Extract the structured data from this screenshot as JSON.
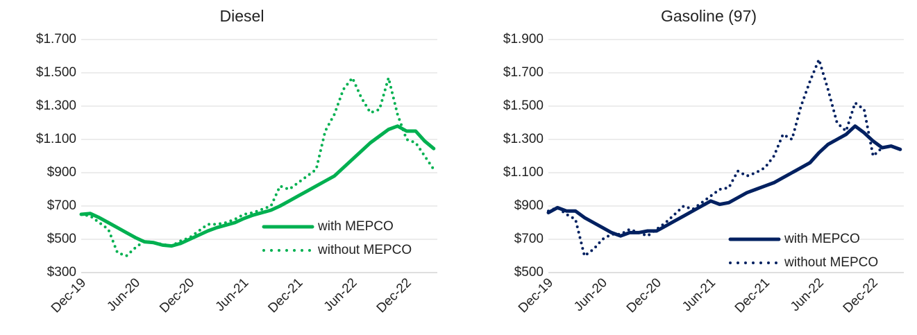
{
  "chart_data": [
    {
      "type": "line",
      "title": "Diesel",
      "categories": [
        "Dec-19",
        null,
        null,
        null,
        null,
        null,
        "Jun-20",
        null,
        null,
        null,
        null,
        null,
        "Dec-20",
        null,
        null,
        null,
        null,
        null,
        "Jun-21",
        null,
        null,
        null,
        null,
        null,
        "Dec-21",
        null,
        null,
        null,
        null,
        null,
        "Jun-22",
        null,
        null,
        null,
        null,
        null,
        "Dec-22",
        null,
        null,
        null
      ],
      "series": [
        {
          "name": "with MEPCO",
          "color": "#00b050",
          "dash": "solid",
          "values": [
            650,
            655,
            630,
            600,
            570,
            540,
            510,
            485,
            480,
            465,
            460,
            475,
            500,
            525,
            550,
            570,
            585,
            600,
            625,
            645,
            660,
            675,
            700,
            730,
            760,
            790,
            820,
            850,
            880,
            930,
            980,
            1030,
            1080,
            1120,
            1160,
            1180,
            1150,
            1150,
            1090,
            1045
          ]
        },
        {
          "name": "without MEPCO",
          "color": "#00b050",
          "dash": "dotted",
          "values": [
            650,
            640,
            600,
            560,
            420,
            400,
            450,
            490,
            480,
            470,
            460,
            490,
            510,
            550,
            590,
            590,
            600,
            620,
            650,
            660,
            680,
            700,
            820,
            800,
            840,
            880,
            920,
            1150,
            1250,
            1400,
            1470,
            1350,
            1260,
            1280,
            1470,
            1250,
            1100,
            1080,
            1000,
            920
          ]
        }
      ],
      "ylim": [
        300,
        1700
      ],
      "yticks": [
        {
          "value": 300,
          "label": "$300"
        },
        {
          "value": 500,
          "label": "$500"
        },
        {
          "value": 700,
          "label": "$700"
        },
        {
          "value": 900,
          "label": "$900"
        },
        {
          "value": 1100,
          "label": "$1.100"
        },
        {
          "value": 1300,
          "label": "$1.300"
        },
        {
          "value": 1500,
          "label": "$1.500"
        },
        {
          "value": 1700,
          "label": "$1.700"
        }
      ],
      "grid": true,
      "legend": "lower right"
    },
    {
      "type": "line",
      "title": "Gasoline (97)",
      "categories": [
        "Dec-19",
        null,
        null,
        null,
        null,
        null,
        "Jun-20",
        null,
        null,
        null,
        null,
        null,
        "Dec-20",
        null,
        null,
        null,
        null,
        null,
        "Jun-21",
        null,
        null,
        null,
        null,
        null,
        "Dec-21",
        null,
        null,
        null,
        null,
        null,
        "Jun-22",
        null,
        null,
        null,
        null,
        null,
        "Dec-22",
        null,
        null,
        null
      ],
      "series": [
        {
          "name": "with MEPCO",
          "color": "#002060",
          "dash": "solid",
          "values": [
            860,
            890,
            870,
            870,
            830,
            800,
            770,
            740,
            720,
            740,
            740,
            750,
            750,
            780,
            810,
            840,
            870,
            900,
            930,
            910,
            920,
            950,
            980,
            1000,
            1020,
            1040,
            1070,
            1100,
            1130,
            1160,
            1220,
            1270,
            1300,
            1330,
            1380,
            1340,
            1290,
            1250,
            1260,
            1240
          ]
        },
        {
          "name": "without MEPCO",
          "color": "#002060",
          "dash": "dotted",
          "values": [
            870,
            890,
            850,
            820,
            600,
            640,
            700,
            730,
            730,
            760,
            740,
            720,
            760,
            800,
            850,
            900,
            880,
            920,
            960,
            1000,
            1010,
            1110,
            1080,
            1100,
            1130,
            1200,
            1330,
            1300,
            1500,
            1650,
            1780,
            1600,
            1400,
            1350,
            1520,
            1480,
            1200,
            1250,
            1260,
            1240
          ]
        }
      ],
      "ylim": [
        500,
        1900
      ],
      "yticks": [
        {
          "value": 500,
          "label": "$500"
        },
        {
          "value": 700,
          "label": "$700"
        },
        {
          "value": 900,
          "label": "$900"
        },
        {
          "value": 1100,
          "label": "$1.100"
        },
        {
          "value": 1300,
          "label": "$1.300"
        },
        {
          "value": 1500,
          "label": "$1.500"
        },
        {
          "value": 1700,
          "label": "$1.700"
        },
        {
          "value": 1900,
          "label": "$1.900"
        }
      ],
      "grid": true,
      "legend": "lower right"
    }
  ]
}
